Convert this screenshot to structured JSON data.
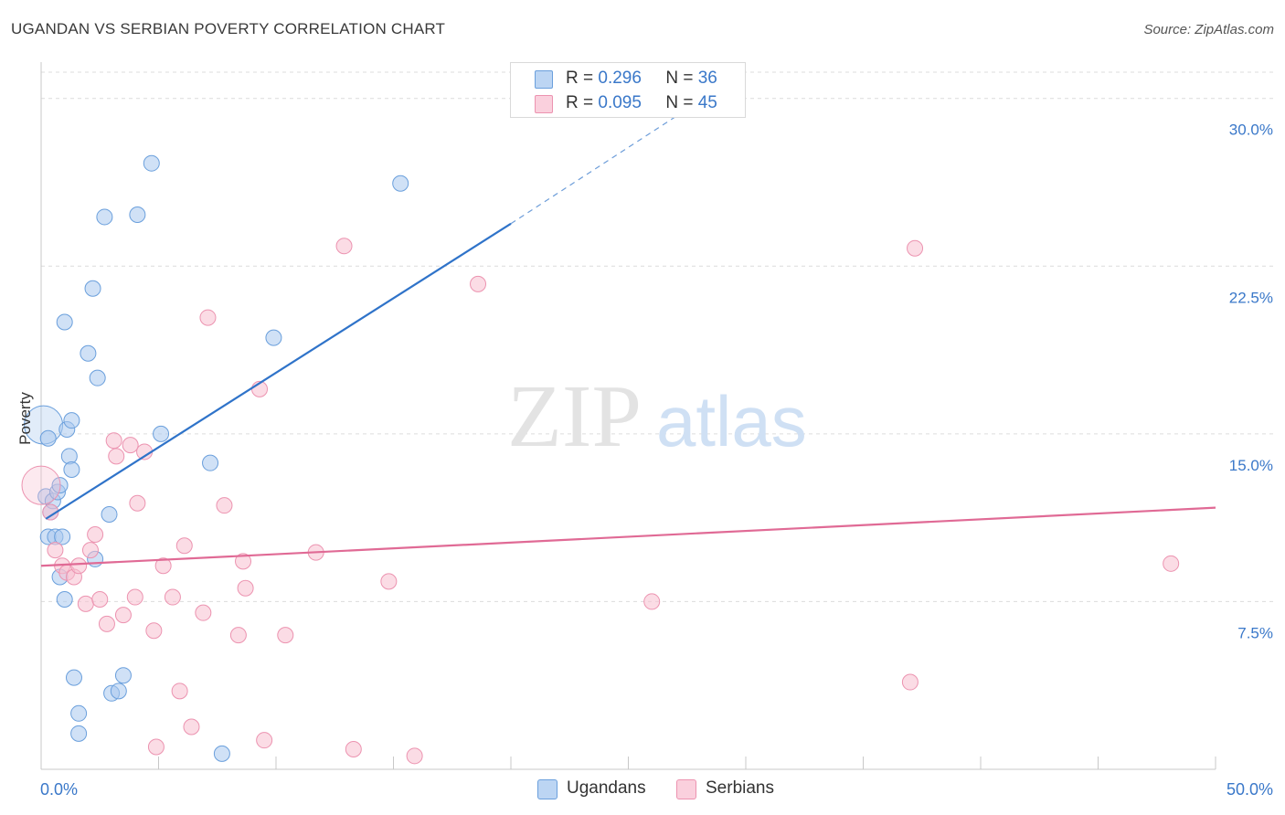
{
  "header": {
    "title": "UGANDAN VS SERBIAN POVERTY CORRELATION CHART",
    "source": "Source: ZipAtlas.com"
  },
  "watermark": {
    "zip": "ZIP",
    "atlas": "atlas"
  },
  "legend_top": [
    {
      "r_label": "R =",
      "r_value": "0.296",
      "n_label": "N =",
      "n_value": "36"
    },
    {
      "r_label": "R =",
      "r_value": "0.095",
      "n_label": "N =",
      "n_value": "45"
    }
  ],
  "legend_bottom": [
    {
      "label": "Ugandans"
    },
    {
      "label": "Serbians"
    }
  ],
  "colors": {
    "ugandans_fill": "#a9c8ef",
    "ugandans_stroke": "#6a9fdc",
    "ugandans_line": "#2f73c9",
    "serbians_fill": "#f7bfd0",
    "serbians_stroke": "#ec93b0",
    "serbians_line": "#e06a95",
    "axis_text": "#3a78c9",
    "grid": "#dcdcdc"
  },
  "chart_data": {
    "type": "scatter",
    "title": "UGANDAN VS SERBIAN POVERTY CORRELATION CHART",
    "xlabel": "",
    "ylabel": "Poverty",
    "xlim": [
      0,
      50
    ],
    "ylim": [
      0,
      31.5
    ],
    "x_tick_labels": [
      {
        "value": 0,
        "label": "0.0%"
      },
      {
        "value": 50,
        "label": "50.0%"
      }
    ],
    "y_tick_labels": [
      {
        "value": 7.5,
        "label": "7.5%"
      },
      {
        "value": 15,
        "label": "15.0%"
      },
      {
        "value": 22.5,
        "label": "22.5%"
      },
      {
        "value": 30,
        "label": "30.0%"
      }
    ],
    "grid": true,
    "legend_position": "top-center",
    "series": [
      {
        "name": "Ugandans",
        "r": 0.296,
        "n": 36,
        "trend": {
          "x": [
            0.2,
            20.0
          ],
          "y": [
            11.2,
            24.4
          ],
          "dashed_to": {
            "x": 28.5,
            "y": 30.2
          }
        },
        "points": [
          {
            "x": 0.1,
            "y": 15.4,
            "big": true
          },
          {
            "x": 0.3,
            "y": 14.8
          },
          {
            "x": 0.2,
            "y": 12.2
          },
          {
            "x": 0.4,
            "y": 11.5
          },
          {
            "x": 0.5,
            "y": 12.0
          },
          {
            "x": 0.3,
            "y": 10.4
          },
          {
            "x": 0.6,
            "y": 10.4
          },
          {
            "x": 0.7,
            "y": 12.4
          },
          {
            "x": 0.8,
            "y": 12.7
          },
          {
            "x": 0.9,
            "y": 10.4
          },
          {
            "x": 1.0,
            "y": 20.0
          },
          {
            "x": 1.1,
            "y": 15.2
          },
          {
            "x": 1.2,
            "y": 14.0
          },
          {
            "x": 1.3,
            "y": 13.4
          },
          {
            "x": 1.3,
            "y": 15.6
          },
          {
            "x": 0.8,
            "y": 8.6
          },
          {
            "x": 1.0,
            "y": 7.6
          },
          {
            "x": 1.4,
            "y": 4.1
          },
          {
            "x": 1.6,
            "y": 2.5
          },
          {
            "x": 1.6,
            "y": 1.6
          },
          {
            "x": 2.0,
            "y": 18.6
          },
          {
            "x": 2.2,
            "y": 21.5
          },
          {
            "x": 2.4,
            "y": 17.5
          },
          {
            "x": 2.3,
            "y": 9.4
          },
          {
            "x": 2.7,
            "y": 24.7
          },
          {
            "x": 2.9,
            "y": 11.4
          },
          {
            "x": 3.0,
            "y": 3.4
          },
          {
            "x": 3.3,
            "y": 3.5
          },
          {
            "x": 3.5,
            "y": 4.2
          },
          {
            "x": 4.1,
            "y": 24.8
          },
          {
            "x": 4.7,
            "y": 27.1
          },
          {
            "x": 5.1,
            "y": 15.0
          },
          {
            "x": 7.2,
            "y": 13.7
          },
          {
            "x": 7.7,
            "y": 0.7
          },
          {
            "x": 9.9,
            "y": 19.3
          },
          {
            "x": 15.3,
            "y": 26.2
          }
        ]
      },
      {
        "name": "Serbians",
        "r": 0.095,
        "n": 45,
        "trend": {
          "x": [
            0.0,
            50.0
          ],
          "y": [
            9.1,
            11.7
          ]
        },
        "points": [
          {
            "x": 0.0,
            "y": 12.7,
            "big": true
          },
          {
            "x": 0.4,
            "y": 11.5
          },
          {
            "x": 0.6,
            "y": 9.8
          },
          {
            "x": 0.9,
            "y": 9.1
          },
          {
            "x": 1.1,
            "y": 8.8
          },
          {
            "x": 1.4,
            "y": 8.6
          },
          {
            "x": 1.6,
            "y": 9.1
          },
          {
            "x": 1.9,
            "y": 7.4
          },
          {
            "x": 2.1,
            "y": 9.8
          },
          {
            "x": 2.3,
            "y": 10.5
          },
          {
            "x": 2.5,
            "y": 7.6
          },
          {
            "x": 2.8,
            "y": 6.5
          },
          {
            "x": 3.1,
            "y": 14.7
          },
          {
            "x": 3.2,
            "y": 14.0
          },
          {
            "x": 3.5,
            "y": 6.9
          },
          {
            "x": 3.8,
            "y": 14.5
          },
          {
            "x": 4.0,
            "y": 7.7
          },
          {
            "x": 4.1,
            "y": 11.9
          },
          {
            "x": 4.4,
            "y": 14.2
          },
          {
            "x": 4.8,
            "y": 6.2
          },
          {
            "x": 4.9,
            "y": 1.0
          },
          {
            "x": 5.2,
            "y": 9.1
          },
          {
            "x": 5.6,
            "y": 7.7
          },
          {
            "x": 5.9,
            "y": 3.5
          },
          {
            "x": 6.1,
            "y": 10.0
          },
          {
            "x": 6.4,
            "y": 1.9
          },
          {
            "x": 6.9,
            "y": 7.0
          },
          {
            "x": 7.1,
            "y": 20.2
          },
          {
            "x": 7.8,
            "y": 11.8
          },
          {
            "x": 8.4,
            "y": 6.0
          },
          {
            "x": 8.6,
            "y": 9.3
          },
          {
            "x": 8.7,
            "y": 8.1
          },
          {
            "x": 9.3,
            "y": 17.0
          },
          {
            "x": 9.5,
            "y": 1.3
          },
          {
            "x": 10.4,
            "y": 6.0
          },
          {
            "x": 11.7,
            "y": 9.7
          },
          {
            "x": 12.9,
            "y": 23.4
          },
          {
            "x": 13.3,
            "y": 0.9
          },
          {
            "x": 14.8,
            "y": 8.4
          },
          {
            "x": 15.9,
            "y": 0.6
          },
          {
            "x": 18.6,
            "y": 21.7
          },
          {
            "x": 26.0,
            "y": 7.5
          },
          {
            "x": 37.0,
            "y": 3.9
          },
          {
            "x": 37.2,
            "y": 23.3
          },
          {
            "x": 48.1,
            "y": 9.2
          }
        ]
      }
    ]
  }
}
